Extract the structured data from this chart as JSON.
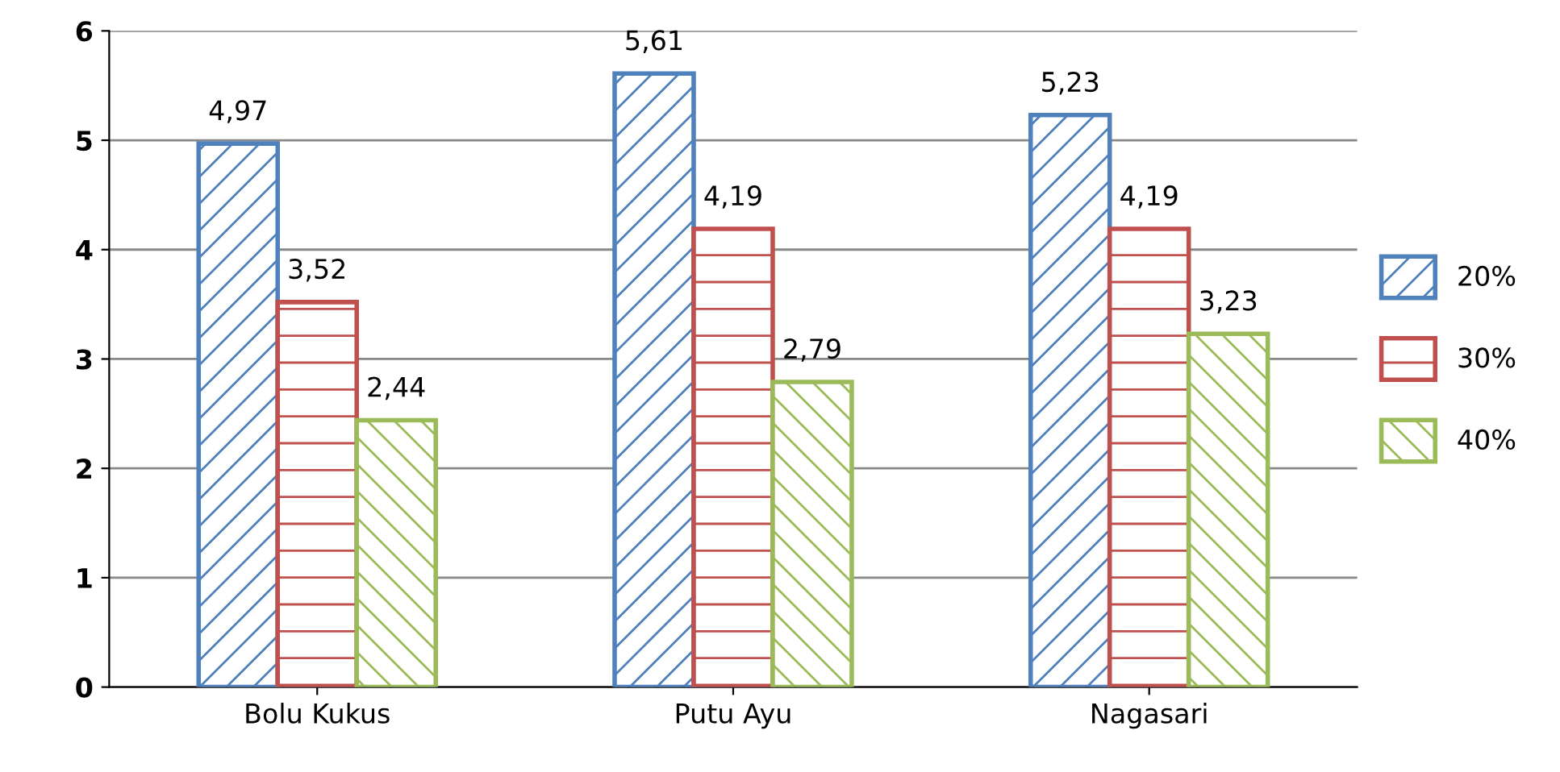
{
  "chart_data": {
    "type": "bar",
    "categories": [
      "Bolu Kukus",
      "Putu Ayu",
      "Nagasari"
    ],
    "series": [
      {
        "name": "20%",
        "color": "#4f81bd",
        "values": [
          4.97,
          5.61,
          5.23
        ],
        "value_labels": [
          "4,97",
          "5,61",
          "5,23"
        ]
      },
      {
        "name": "30%",
        "color": "#c0504d",
        "values": [
          3.52,
          4.19,
          4.19
        ],
        "value_labels": [
          "3,52",
          "4,19",
          "4,19"
        ]
      },
      {
        "name": "40%",
        "color": "#9bbb59",
        "values": [
          2.44,
          2.79,
          3.23
        ],
        "value_labels": [
          "2,44",
          "2,79",
          "3,23"
        ]
      }
    ],
    "ylim": [
      0,
      6
    ],
    "yticks": [
      0,
      1,
      2,
      3,
      4,
      5,
      6
    ],
    "grid": "y",
    "legend": "right"
  }
}
